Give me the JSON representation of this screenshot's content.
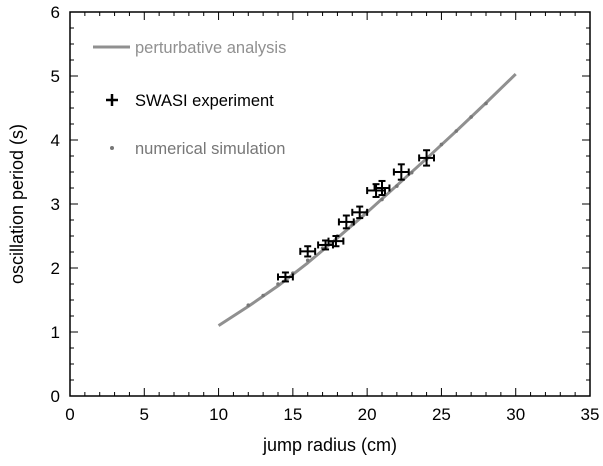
{
  "chart_data": {
    "type": "scatter",
    "title": "",
    "xlabel": "jump radius (cm)",
    "ylabel": "oscillation period (s)",
    "xlim": [
      0,
      35
    ],
    "ylim": [
      0,
      6
    ],
    "x_ticks": [
      "0",
      "5",
      "10",
      "15",
      "20",
      "25",
      "30",
      "35"
    ],
    "y_ticks": [
      "0",
      "1",
      "2",
      "3",
      "4",
      "5",
      "6"
    ],
    "grid": false,
    "legend": "top-left",
    "series": [
      {
        "name": "perturbative analysis",
        "kind": "line",
        "color": "#909090",
        "x": [
          10,
          12,
          14,
          16,
          18,
          20,
          22,
          24,
          26,
          28,
          30
        ],
        "y": [
          1.1,
          1.4,
          1.72,
          2.08,
          2.47,
          2.87,
          3.29,
          3.71,
          4.14,
          4.58,
          5.03
        ]
      },
      {
        "name": "SWASI experiment",
        "kind": "errorbar",
        "color": "#000000",
        "points": [
          {
            "x": 14.5,
            "y": 1.86,
            "xerr": 0.5,
            "yerr": 0.07
          },
          {
            "x": 16.0,
            "y": 2.26,
            "xerr": 0.5,
            "yerr": 0.08
          },
          {
            "x": 17.2,
            "y": 2.36,
            "xerr": 0.5,
            "yerr": 0.07
          },
          {
            "x": 17.9,
            "y": 2.42,
            "xerr": 0.5,
            "yerr": 0.08
          },
          {
            "x": 18.6,
            "y": 2.72,
            "xerr": 0.5,
            "yerr": 0.1
          },
          {
            "x": 19.5,
            "y": 2.87,
            "xerr": 0.5,
            "yerr": 0.09
          },
          {
            "x": 20.6,
            "y": 3.21,
            "xerr": 0.6,
            "yerr": 0.1
          },
          {
            "x": 21.0,
            "y": 3.25,
            "xerr": 0.5,
            "yerr": 0.11
          },
          {
            "x": 22.3,
            "y": 3.5,
            "xerr": 0.5,
            "yerr": 0.12
          },
          {
            "x": 24.0,
            "y": 3.72,
            "xerr": 0.5,
            "yerr": 0.12
          }
        ]
      },
      {
        "name": "numerical simulation",
        "kind": "dot",
        "color": "#777777",
        "x": [
          12,
          13,
          14,
          15,
          16,
          17,
          18,
          19,
          20,
          21,
          22,
          23,
          24,
          25,
          26,
          27,
          28
        ],
        "y": [
          1.42,
          1.57,
          1.75,
          1.92,
          2.12,
          2.31,
          2.5,
          2.68,
          2.88,
          3.07,
          3.28,
          3.49,
          3.7,
          3.93,
          4.14,
          4.36,
          4.57
        ]
      }
    ]
  }
}
